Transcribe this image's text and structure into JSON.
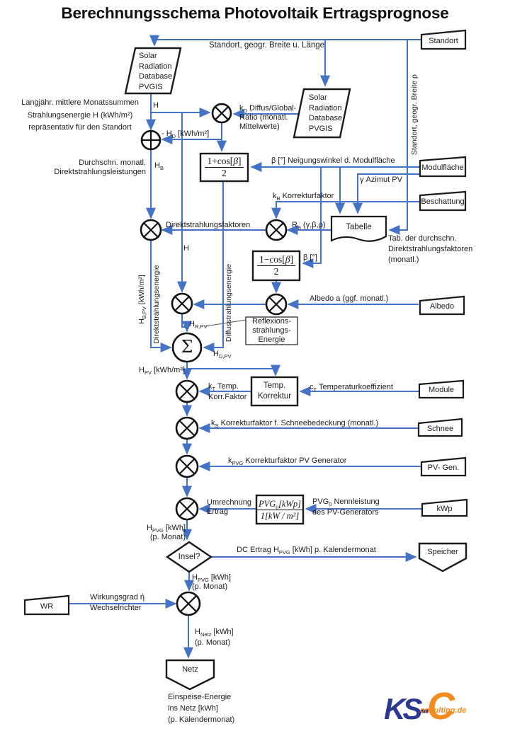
{
  "title": "Berechnungsschema  Photovoltaik Ertragsprognose",
  "colors": {
    "wire": "#4472C4",
    "shape_stroke": "#1a1a1a",
    "logo_blue": "#2B3990",
    "logo_orange": "#F28C1E"
  },
  "nodes": {
    "pvgis1": "Solar\nRadiation\nDatabase\nPVGIS",
    "pvgis2": "Solar\nRadiation\nDatabase\nPVGIS",
    "standort": "Standort",
    "modulflaeche": "Modulfläche",
    "beschattung": "Beschattung",
    "tabelle": "Tabelle",
    "albedo": "Albedo",
    "module": "Module",
    "schnee": "Schnee",
    "pv_gen": "PV- Gen.",
    "kwp": "kWp",
    "wr": "WR",
    "speicher": "Speicher",
    "netz": "Netz",
    "insel": "Insel?",
    "temp_korrektur": "Temp.\nKorrektur",
    "reflexion": "Reflexions-\nstrahlungs-\nEnergie",
    "sigma": "Σ"
  },
  "formulas": {
    "f1_num": [
      [
        "1+cos[",
        "n"
      ],
      [
        "β",
        "i"
      ],
      [
        "]",
        "n"
      ]
    ],
    "f1_den": "2",
    "f2_num": [
      [
        "1−cos[",
        "n"
      ],
      [
        "β",
        "i"
      ],
      [
        "]",
        "n"
      ]
    ],
    "f2_den": "2",
    "f3_num": [
      [
        "PVG",
        "i"
      ],
      [
        "0",
        "sub"
      ],
      [
        "[kWp]",
        "i"
      ]
    ],
    "f3_den": [
      [
        "1[kW / m²]",
        "i"
      ]
    ]
  },
  "labels": {
    "standort_line": "Standort, geogr. Breite u. Länge",
    "langjaehr": "Langjähr. mittlere Monatssummen\nStrahlungsenergie H (kWh/m²)\nrepräsentativ für den Standort",
    "h1": "H",
    "kd": [
      [
        "k",
        "n"
      ],
      [
        "D",
        "sub"
      ],
      [
        " Diffus/Global-\nRatio (monatl.\nMittelwerte)",
        "n"
      ]
    ],
    "minus_hd": [
      [
        "- H",
        "n"
      ],
      [
        "D",
        "sub"
      ],
      [
        " [kWh/m²]",
        "n"
      ]
    ],
    "durchschn": "Durchschn. monatl.\nDirektstrahlungsleistungen",
    "hb": [
      [
        "H",
        "n"
      ],
      [
        "B",
        "sub"
      ]
    ],
    "beta_neigung": "β [°] Neigungswinkel d. Modulfläche",
    "gamma_azimut": "γ Azimut PV",
    "kb": [
      [
        "k",
        "n"
      ],
      [
        "B",
        "sub"
      ],
      [
        " Korrekturfaktor",
        "n"
      ]
    ],
    "rb": [
      [
        "R",
        "n"
      ],
      [
        "B",
        "sub"
      ],
      [
        " (γ,β,ρ)",
        "n"
      ]
    ],
    "direktfaktoren": "Direktstrahlungsfaktoren",
    "h2": "H",
    "tab_note": "Tab. der durchschn.\nDirektstrahlungsfaktoren\n(monatl.)",
    "beta_grad": "β [°]",
    "albedo_line": "Albedo a (ggf. monatl.)",
    "hrpv": [
      [
        "H",
        "n"
      ],
      [
        "R,PV",
        "sub"
      ]
    ],
    "hdpv": [
      [
        "H",
        "n"
      ],
      [
        "D,PV",
        "sub"
      ]
    ],
    "v_hbpv": [
      [
        "H",
        "n"
      ],
      [
        "B,PV",
        "sub"
      ],
      [
        " [kWh/m²]",
        "n"
      ]
    ],
    "v_direkt": "Direktstrahlungsenergie",
    "v_diffus": "Diffusstrahlungsenergie",
    "v_standort": "Standort, geogr. Breite ρ",
    "hpv": [
      [
        "H",
        "n"
      ],
      [
        "PV",
        "sub"
      ],
      [
        " [kWh/m²]",
        "n"
      ]
    ],
    "kt": [
      [
        "k",
        "n"
      ],
      [
        "T",
        "sub"
      ],
      [
        " Temp.\nKorr.Faktor",
        "n"
      ]
    ],
    "ct": [
      [
        "c",
        "n"
      ],
      [
        "T",
        "sub"
      ],
      [
        "  Temperaturkoeffizient",
        "n"
      ]
    ],
    "ks": [
      [
        "k",
        "n"
      ],
      [
        "S",
        "sub"
      ],
      [
        " Korrekturfaktor f. Schneebedeckung (monatl.)",
        "n"
      ]
    ],
    "kpvg": [
      [
        "k",
        "n"
      ],
      [
        "PVG",
        "sub"
      ],
      [
        " Korrekturfaktor PV Generator",
        "n"
      ]
    ],
    "umrechnung": "Umrechnung\nErtrag",
    "pvg0_nenn": [
      [
        "PVG",
        "n"
      ],
      [
        "0",
        "sub"
      ],
      [
        " Nennleistung\ndes PV-Generators",
        "n"
      ]
    ],
    "hpvg1": [
      [
        "H",
        "n"
      ],
      [
        "PVG",
        "sub"
      ],
      [
        " [kWh]\n(p. Monat)",
        "n"
      ]
    ],
    "dc_ertrag": [
      [
        "DC Ertrag H",
        "n"
      ],
      [
        "PVG",
        "sub"
      ],
      [
        " [kWh] p. Kalendermonat",
        "n"
      ]
    ],
    "hpvg2": [
      [
        "H",
        "n"
      ],
      [
        "PVG",
        "sub"
      ],
      [
        " [kWh]\n(p. Monat)",
        "n"
      ]
    ],
    "wirkungsgrad": "Wirkungsgrad ή\nWechselrichter",
    "hnetz": [
      [
        "H",
        "n"
      ],
      [
        "Netz",
        "sub"
      ],
      [
        " [kWh]\n(p. Monat)",
        "n"
      ]
    ],
    "einspeise": "Einspeise-Energie\nins Netz [kWh]\n(p. Kalendermonat)"
  },
  "logo": {
    "ks": "KS-",
    "c": "C",
    "suffix": "onsulting.de"
  }
}
